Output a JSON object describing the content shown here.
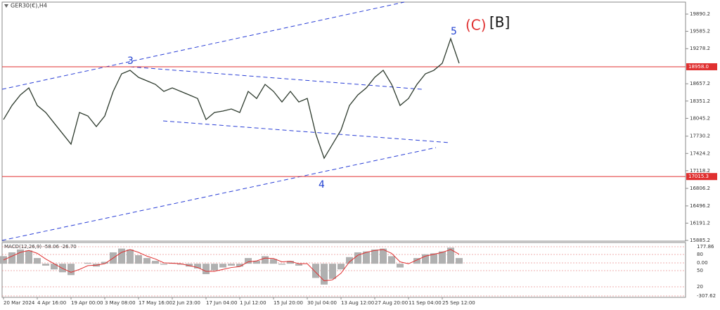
{
  "chart_data": {
    "type": "line",
    "title": "GER30(€),H4",
    "categories": [
      "20 Mar 2024",
      null,
      null,
      null,
      "4 Apr 16:00",
      null,
      null,
      null,
      "19 Apr 00:00",
      null,
      null,
      null,
      "3 May 08:00",
      null,
      null,
      null,
      "17 May 16:00",
      null,
      null,
      null,
      "2 Jun 23:00",
      null,
      null,
      null,
      "17 Jun 04:00",
      null,
      null,
      null,
      "1 Jul 12:00",
      null,
      null,
      null,
      "15 Jul 20:00",
      null,
      null,
      null,
      "30 Jul 04:00",
      null,
      null,
      null,
      "13 Aug 12:00",
      null,
      null,
      null,
      "27 Aug 20:00",
      null,
      null,
      null,
      "11 Sep 04:00",
      null,
      null,
      null,
      "25 Sep 12:00",
      null,
      null
    ],
    "series": [
      {
        "name": "GER30",
        "color": "#2e3b2e",
        "values": [
          18024,
          18273,
          18460,
          18584,
          18273,
          18149,
          17962,
          17775,
          17589,
          18149,
          18087,
          17900,
          18087,
          18522,
          18833,
          18895,
          18771,
          18709,
          18646,
          18522,
          18584,
          18522,
          18460,
          18397,
          18024,
          18149,
          18174,
          18211,
          18149,
          18522,
          18397,
          18646,
          18522,
          18335,
          18522,
          18335,
          18397,
          17775,
          17340,
          17589,
          17838,
          18273,
          18460,
          18584,
          18771,
          18895,
          18646,
          18273,
          18397,
          18646,
          18833,
          18895,
          19020,
          19455,
          19020
        ]
      }
    ],
    "ylim": [
      15873,
      20102
    ],
    "yticks": [
      {
        "value": 19890.2,
        "label": "19890.2"
      },
      {
        "value": 19585.2,
        "label": "19585.2"
      },
      {
        "value": 19278.2,
        "label": "19278.2"
      },
      {
        "value": 18657.2,
        "label": "18657.2"
      },
      {
        "value": 18351.2,
        "label": "18351.2"
      },
      {
        "value": 18045.2,
        "label": "18045.2"
      },
      {
        "value": 17730.2,
        "label": "17730.2"
      },
      {
        "value": 17424.2,
        "label": "17424.2"
      },
      {
        "value": 17118.2,
        "label": "17118.2"
      },
      {
        "value": 16806.2,
        "label": "16806.2"
      },
      {
        "value": 16496.2,
        "label": "16496.2"
      },
      {
        "value": 16191.2,
        "label": "16191.2"
      },
      {
        "value": 15885.2,
        "label": "15885.2"
      }
    ],
    "hlines": [
      {
        "value": 18958.0,
        "label": "18958.0",
        "color": "#e03030"
      },
      {
        "value": 17015.3,
        "label": "17015.3",
        "color": "#e03030"
      }
    ],
    "annotations": [
      {
        "text": "3",
        "color": "#1f3fd0"
      },
      {
        "text": "4",
        "color": "#1f3fd0"
      },
      {
        "text": "5",
        "color": "#1f3fd0"
      },
      {
        "text": "(C)",
        "color": "#e03030"
      },
      {
        "text": "[B]",
        "color": "#111111"
      }
    ],
    "macd": {
      "title": "MACD(12,26,9) -58.06 -26.70",
      "ylim": [
        -355,
        224
      ],
      "axis_labels": [
        "177.86",
        "80",
        "0.00",
        "50",
        "20",
        "-307.62"
      ],
      "series": [
        {
          "name": "MACD",
          "color": "#b0b0b0",
          "values": [
            80,
            120,
            150,
            140,
            60,
            -20,
            -60,
            -90,
            -120,
            0,
            10,
            -30,
            20,
            120,
            160,
            150,
            90,
            60,
            30,
            -10,
            10,
            -10,
            -30,
            -50,
            -110,
            -70,
            -40,
            -20,
            -30,
            60,
            30,
            80,
            50,
            -10,
            30,
            -20,
            0,
            -150,
            -220,
            -160,
            -60,
            70,
            120,
            130,
            150,
            160,
            80,
            -40,
            0,
            60,
            100,
            110,
            130,
            170,
            60
          ]
        },
        {
          "name": "Signal",
          "color": "#e03030",
          "values": [
            40,
            80,
            120,
            140,
            110,
            50,
            0,
            -50,
            -90,
            -60,
            -20,
            -15,
            0,
            60,
            120,
            150,
            120,
            80,
            50,
            10,
            5,
            0,
            -20,
            -40,
            -80,
            -80,
            -60,
            -40,
            -30,
            20,
            30,
            60,
            55,
            20,
            25,
            0,
            0,
            -90,
            -180,
            -170,
            -100,
            20,
            90,
            120,
            140,
            150,
            110,
            20,
            0,
            40,
            80,
            100,
            120,
            150,
            100
          ]
        }
      ]
    }
  }
}
